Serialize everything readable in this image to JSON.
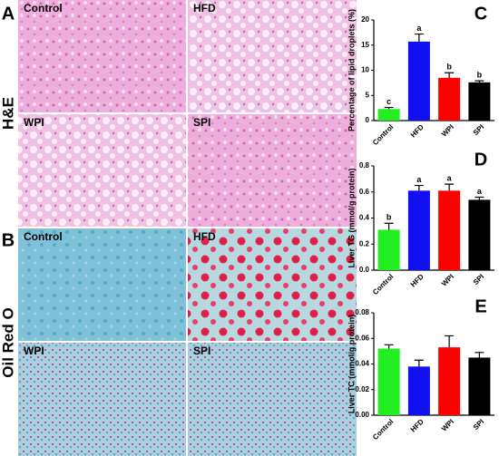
{
  "sections": [
    {
      "label": "A",
      "stain": "H&E",
      "panels": [
        "Control",
        "HFD",
        "WPI",
        "SPI"
      ]
    },
    {
      "label": "B",
      "stain": "Oil Red O",
      "panels": [
        "Control",
        "HFD",
        "WPI",
        "SPI"
      ]
    }
  ],
  "chart_data": [
    {
      "type": "bar",
      "panel": "C",
      "ylabel": "Percentage of lipid droplets (%)",
      "categories": [
        "Control",
        "HFD",
        "WPI",
        "SPI"
      ],
      "values": [
        2.3,
        15.7,
        8.5,
        7.6
      ],
      "errors": [
        0.3,
        1.5,
        1.0,
        0.3
      ],
      "annotations": [
        "c",
        "a",
        "b",
        "b"
      ],
      "colors": [
        "#22ee22",
        "#1010f0",
        "#ff0000",
        "#000000"
      ],
      "ylim": [
        0,
        20
      ],
      "yticks": [
        0,
        5,
        10,
        15,
        20
      ]
    },
    {
      "type": "bar",
      "panel": "D",
      "ylabel": "Liver TG (mmol/g protein)",
      "categories": [
        "Control",
        "HFD",
        "WPI",
        "SPI"
      ],
      "values": [
        0.31,
        0.61,
        0.61,
        0.54
      ],
      "errors": [
        0.05,
        0.04,
        0.05,
        0.02
      ],
      "annotations": [
        "b",
        "a",
        "a",
        "a"
      ],
      "colors": [
        "#22ee22",
        "#1010f0",
        "#ff0000",
        "#000000"
      ],
      "ylim": [
        0,
        0.8
      ],
      "yticks": [
        {
          "value": 0,
          "label": "0.0"
        },
        0.2,
        0.4,
        0.6,
        0.8
      ]
    },
    {
      "type": "bar",
      "panel": "E",
      "ylabel": "Liver TC (mmol/g protein)",
      "categories": [
        "Control",
        "HFD",
        "WPI",
        "SPI"
      ],
      "values": [
        0.052,
        0.038,
        0.053,
        0.045
      ],
      "errors": [
        0.003,
        0.005,
        0.009,
        0.004
      ],
      "colors": [
        "#22ee22",
        "#1010f0",
        "#ff0000",
        "#000000"
      ],
      "ylim": [
        0,
        0.08
      ],
      "yticks": [
        {
          "value": 0,
          "label": "0.00"
        },
        0.02,
        0.04,
        0.06,
        0.08
      ]
    }
  ]
}
